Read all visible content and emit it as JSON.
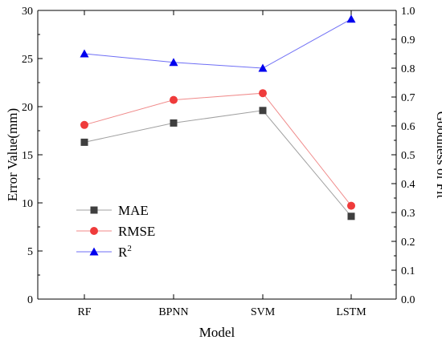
{
  "chart_data": {
    "type": "line",
    "categories": [
      "RF",
      "BPNN",
      "SVM",
      "LSTM"
    ],
    "xlabel": "Model",
    "ylabel_left": "Error Value(mm)",
    "ylabel_right": "Goodness of Fit",
    "ylim_left": [
      0,
      30
    ],
    "ylim_right": [
      0.0,
      1.0
    ],
    "yticks_left": [
      "0",
      "5",
      "10",
      "15",
      "20",
      "25",
      "30"
    ],
    "yticks_right": [
      "0.0",
      "0.1",
      "0.2",
      "0.3",
      "0.4",
      "0.5",
      "0.6",
      "0.7",
      "0.8",
      "0.9",
      "1.0"
    ],
    "grid": false,
    "legend_position": "bottom-left",
    "series": [
      {
        "name": "MAE",
        "axis": "left",
        "marker": "square",
        "color": "#3f3f3f",
        "line_color": "#a0a0a0",
        "values": [
          16.3,
          18.3,
          19.6,
          8.6
        ]
      },
      {
        "name": "RMSE",
        "axis": "left",
        "marker": "circle",
        "color": "#ef3b3b",
        "line_color": "#f08a8a",
        "values": [
          18.1,
          20.7,
          21.4,
          9.7
        ]
      },
      {
        "name": "R2",
        "legend_main": "R",
        "legend_sup": "2",
        "axis": "right",
        "marker": "triangle",
        "color": "#0000ee",
        "line_color": "#6e6ef5",
        "values": [
          0.85,
          0.82,
          0.8,
          0.97
        ]
      }
    ]
  }
}
